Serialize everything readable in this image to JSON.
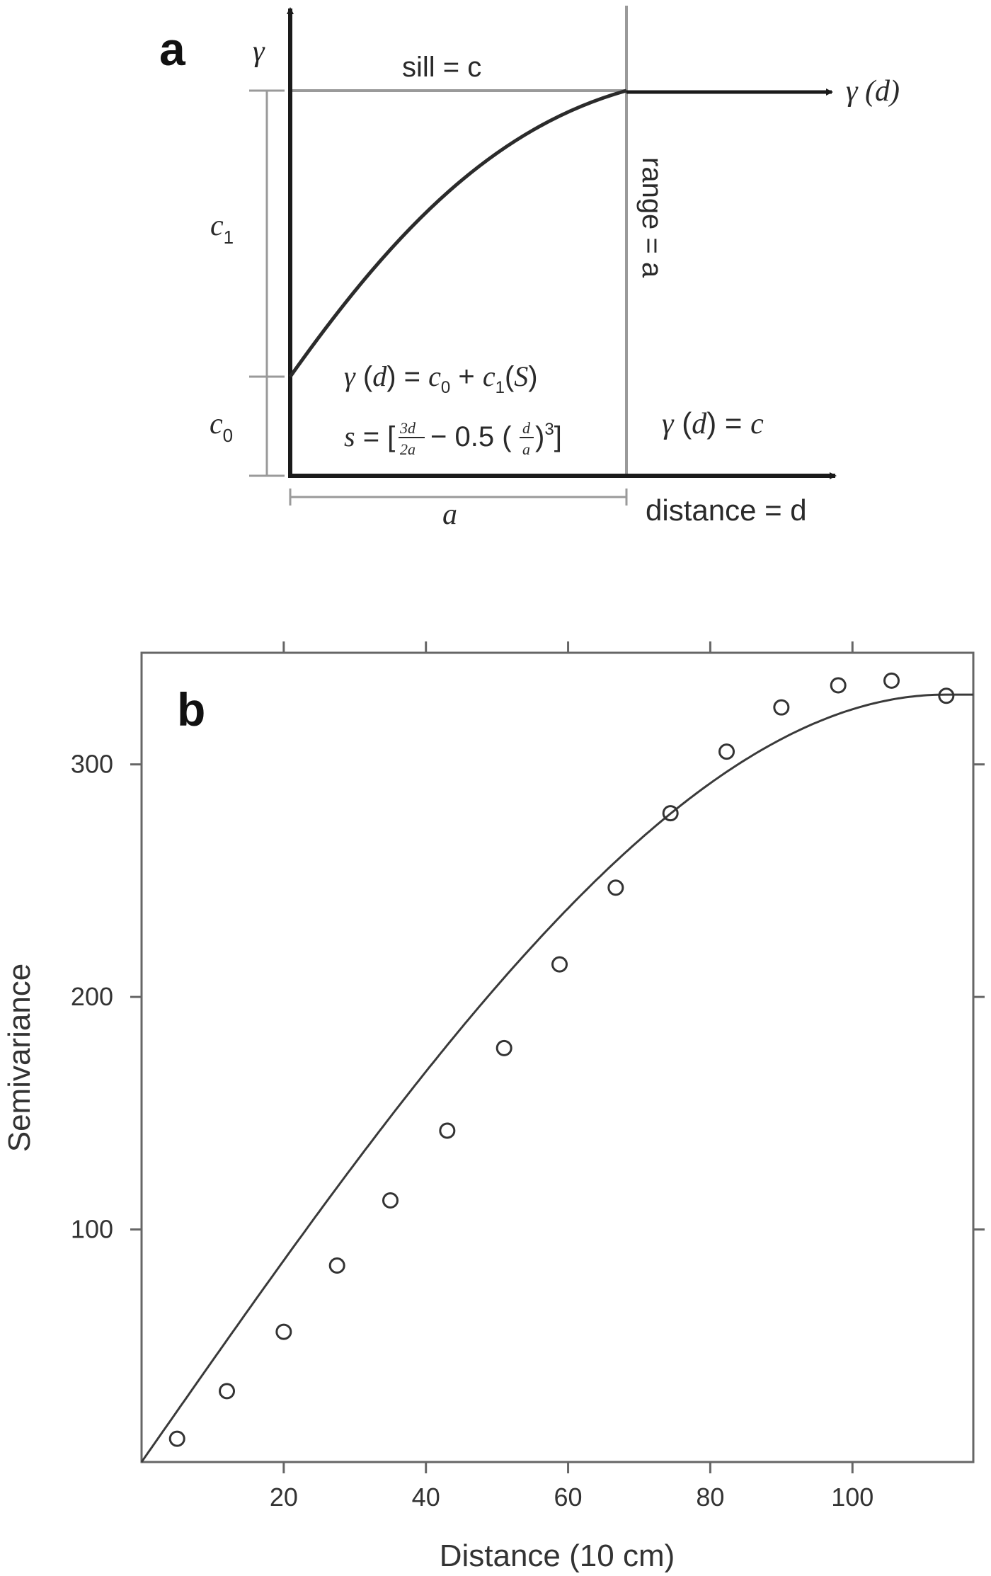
{
  "panel_a": {
    "letter": "a",
    "y_axis_symbol": "γ",
    "sill_label": "sill = c",
    "curve_label": "γ (d)",
    "range_label": "range = a",
    "c1_label": "c",
    "c1_sub": "1",
    "c0_label": "c",
    "c0_sub": "0",
    "formula_gamma": "γ (d) = c0 + c1(S)",
    "formula_s": "s = [3d/2a − 0.5 (d/a)³]",
    "plateau_formula": "γ (d) = c",
    "a_bracket_label": "a",
    "x_axis_label": "distance = d"
  },
  "chart_data": {
    "type": "scatter",
    "panel_letter": "b",
    "xlabel": "Distance (10 cm)",
    "ylabel": "Semivariance",
    "xlim": [
      0,
      117
    ],
    "ylim": [
      0,
      348
    ],
    "xticks": [
      20,
      40,
      60,
      80,
      100
    ],
    "yticks": [
      100,
      200,
      300
    ],
    "grid": false,
    "x": [
      5,
      12,
      20,
      27.5,
      35,
      43,
      51,
      58.8,
      66.7,
      74.4,
      82.3,
      90,
      98,
      105.5,
      113.2
    ],
    "y": [
      10,
      30.5,
      56,
      84.5,
      112.5,
      142.5,
      178,
      214,
      247,
      279,
      305.5,
      324.5,
      334,
      336,
      329.5
    ],
    "model_curve": {
      "name": "spherical model",
      "nugget": 0,
      "sill": 330,
      "range": 113
    }
  },
  "colors": {
    "axis": "#1a1a1a",
    "guide_lines": "#9a9a9a",
    "curve": "#333333",
    "text": "#2a2a2a"
  }
}
